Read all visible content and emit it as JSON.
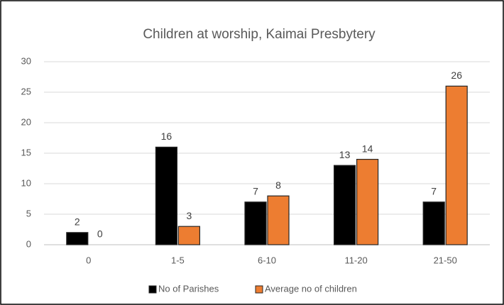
{
  "chart_data": {
    "type": "bar",
    "title": "Children at worship, Kaimai Presbytery",
    "categories": [
      "0",
      "1-5",
      "6-10",
      "11-20",
      "21-50"
    ],
    "series": [
      {
        "name": "No of Parishes",
        "color": "#000000",
        "values": [
          2,
          16,
          7,
          13,
          7
        ]
      },
      {
        "name": "Average no of children",
        "color": "#ed7d31",
        "values": [
          0,
          3,
          8,
          14,
          26
        ]
      }
    ],
    "ylim": [
      0,
      30
    ],
    "yticks": [
      0,
      5,
      10,
      15,
      20,
      25,
      30
    ],
    "grid": true,
    "legend": "bottom"
  }
}
